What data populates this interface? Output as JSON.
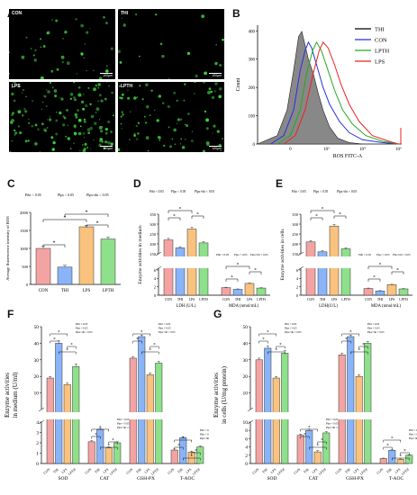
{
  "panel_letters": {
    "A": "A",
    "B": "B",
    "C": "C",
    "D": "D",
    "E": "E",
    "F": "F",
    "G": "G"
  },
  "micro": {
    "panels": [
      {
        "label": "CON",
        "scale": "100µm",
        "density": 0.25
      },
      {
        "label": "THI",
        "scale": "100µm",
        "density": 0.12
      },
      {
        "label": "LPS",
        "scale": "100µm",
        "density": 0.9
      },
      {
        "label": "LPTH",
        "scale": "100µm",
        "density": 0.55
      }
    ]
  },
  "colors": {
    "CON": "#f4a3a3",
    "THI": "#8ab4f8",
    "LPS": "#f9c27e",
    "LPTH": "#8ee08a"
  },
  "chart_data": [
    {
      "id": "B",
      "type": "line",
      "xlabel": "ROS FITC-A",
      "ylabel": "Count",
      "yticks": [
        0,
        100,
        200,
        300,
        400
      ],
      "ylim": [
        0,
        420
      ],
      "xtick_labels": [
        "0",
        "10³",
        "10⁴",
        "10⁵"
      ],
      "legend": [
        "THI",
        "CON",
        "LPTH",
        "LPS"
      ],
      "legend_colors": [
        "#000000",
        "#2233dd",
        "#22aa22",
        "#ee2222"
      ],
      "series": [
        {
          "name": "THI",
          "fill": true,
          "color": "#888888",
          "stroke": "#222222",
          "points": [
            [
              0,
              0
            ],
            [
              0.6,
              30
            ],
            [
              0.9,
              120
            ],
            [
              1.1,
              260
            ],
            [
              1.25,
              380
            ],
            [
              1.35,
              398
            ],
            [
              1.45,
              350
            ],
            [
              1.55,
              300
            ],
            [
              1.7,
              250
            ],
            [
              1.85,
              180
            ],
            [
              2.0,
              120
            ],
            [
              2.2,
              60
            ],
            [
              2.45,
              20
            ],
            [
              2.8,
              5
            ],
            [
              3.2,
              0
            ]
          ]
        },
        {
          "name": "CON",
          "fill": false,
          "color": "#2233dd",
          "points": [
            [
              0.4,
              0
            ],
            [
              0.8,
              30
            ],
            [
              1.1,
              120
            ],
            [
              1.3,
              260
            ],
            [
              1.45,
              330
            ],
            [
              1.55,
              360
            ],
            [
              1.65,
              340
            ],
            [
              1.8,
              280
            ],
            [
              2.0,
              200
            ],
            [
              2.2,
              140
            ],
            [
              2.5,
              80
            ],
            [
              2.8,
              40
            ],
            [
              3.2,
              15
            ],
            [
              3.8,
              5
            ],
            [
              4.3,
              0
            ]
          ]
        },
        {
          "name": "LPTH",
          "fill": false,
          "color": "#22aa22",
          "points": [
            [
              0.6,
              0
            ],
            [
              1.0,
              30
            ],
            [
              1.3,
              120
            ],
            [
              1.5,
              250
            ],
            [
              1.68,
              330
            ],
            [
              1.8,
              360
            ],
            [
              1.95,
              330
            ],
            [
              2.15,
              260
            ],
            [
              2.35,
              190
            ],
            [
              2.6,
              120
            ],
            [
              2.9,
              70
            ],
            [
              3.3,
              30
            ],
            [
              3.8,
              10
            ],
            [
              4.3,
              0
            ]
          ]
        },
        {
          "name": "LPS",
          "fill": false,
          "color": "#ee2222",
          "points": [
            [
              0.8,
              0
            ],
            [
              1.15,
              30
            ],
            [
              1.45,
              120
            ],
            [
              1.7,
              250
            ],
            [
              1.88,
              330
            ],
            [
              2.0,
              360
            ],
            [
              2.15,
              340
            ],
            [
              2.35,
              280
            ],
            [
              2.55,
              210
            ],
            [
              2.8,
              140
            ],
            [
              3.1,
              80
            ],
            [
              3.5,
              30
            ],
            [
              4.0,
              10
            ],
            [
              4.3,
              0
            ]
          ]
        }
      ]
    },
    {
      "id": "C",
      "type": "bar",
      "ylabel": "Average fluorescence intensity of ROS",
      "categories": [
        "CON",
        "THI",
        "LPS",
        "LPTH"
      ],
      "values": [
        1000,
        480,
        1600,
        1260
      ],
      "errors": [
        60,
        50,
        40,
        50
      ],
      "ylim": [
        0,
        2000
      ],
      "yticks": [
        0,
        500,
        1000,
        1500,
        2000
      ],
      "stats": [
        "Pthi < 0.05",
        "Plps < 0.05",
        "Plps×thi < 0.05"
      ]
    },
    {
      "id": "D",
      "type": "bar",
      "ylabel": "Enzyme activities in medium",
      "groups": [
        {
          "name": "LDH (U/L)",
          "values": [
            220,
            180,
            275,
            205
          ],
          "errors": [
            8,
            6,
            8,
            6
          ]
        },
        {
          "name": "MDA (nmol/mL)",
          "values": [
            1.8,
            1.4,
            2.8,
            1.7
          ],
          "errors": [
            0.1,
            0.1,
            0.1,
            0.1
          ]
        }
      ],
      "categories": [
        "CON",
        "THI",
        "LPS",
        "LPTH"
      ],
      "yticks_upper": [
        "150",
        "200",
        "250",
        "300",
        "350"
      ],
      "yticks_lower": [
        "0",
        "2",
        "4",
        "6"
      ],
      "stats": [
        "Pthi < 0.05",
        "Plps < 0.05",
        "Plps×thi < 0.05"
      ]
    },
    {
      "id": "E",
      "type": "bar",
      "ylabel": "Enzyme activities in cells",
      "groups": [
        {
          "name": "LDH(U/L)",
          "values": [
            210,
            160,
            290,
            175
          ],
          "errors": [
            6,
            5,
            8,
            6
          ]
        },
        {
          "name": "MDA (nmol/mL)",
          "values": [
            1.6,
            1.0,
            2.5,
            1.5
          ],
          "errors": [
            0.1,
            0.1,
            0.1,
            0.1
          ]
        }
      ],
      "categories": [
        "CON",
        "THI",
        "LPS",
        "LPTH"
      ],
      "yticks_upper": [
        "150",
        "200",
        "250",
        "300",
        "350"
      ],
      "yticks_lower": [
        "0",
        "2",
        "4",
        "6"
      ],
      "stats": [
        "Pthi < 0.05",
        "Plps < 0.05",
        "Plps×thi < 0.05"
      ]
    },
    {
      "id": "F",
      "type": "bar",
      "ylabel_lines": [
        "Enzyme activities",
        "in medium (U/ml)"
      ],
      "groups": [
        {
          "name": "SOD",
          "values": [
            19,
            40,
            15,
            26
          ],
          "errors": [
            1,
            1.5,
            1,
            1.5
          ]
        },
        {
          "name": "CAT",
          "values": [
            2.1,
            3.3,
            1.5,
            2.0
          ],
          "errors": [
            0.1,
            0.1,
            0.1,
            0.1
          ]
        },
        {
          "name": "GSH-PX",
          "values": [
            31,
            44,
            21,
            28
          ],
          "errors": [
            1,
            1,
            1,
            1
          ]
        },
        {
          "name": "T-AOC",
          "values": [
            1.3,
            2.5,
            1.1,
            1.6
          ],
          "errors": [
            0.1,
            0.1,
            0.1,
            0.1
          ]
        }
      ],
      "categories": [
        "CON",
        "THI",
        "LPS",
        "LPTH"
      ],
      "yticks_upper": [
        "10",
        "20",
        "30",
        "40",
        "50"
      ],
      "yticks_lower": [
        "0",
        "1",
        "2",
        "3",
        "4"
      ],
      "stats": [
        "Pthi < 0.05",
        "Plps < 0.05",
        "Plps×thi < 0.05"
      ]
    },
    {
      "id": "G",
      "type": "bar",
      "ylabel_lines": [
        "Enzyme activities",
        "in cells (U/mg protein)"
      ],
      "groups": [
        {
          "name": "SOD",
          "values": [
            30,
            37,
            19,
            34
          ],
          "errors": [
            1,
            1.5,
            1,
            1.5
          ]
        },
        {
          "name": "CAT",
          "values": [
            6.8,
            8.0,
            2.8,
            7.4
          ],
          "errors": [
            0.3,
            0.3,
            0.3,
            0.3
          ]
        },
        {
          "name": "GSH-PX",
          "values": [
            33,
            44,
            20,
            40
          ],
          "errors": [
            1,
            1,
            1,
            1
          ]
        },
        {
          "name": "T-AOC",
          "values": [
            1.2,
            3.2,
            1.0,
            2.0
          ],
          "errors": [
            0.1,
            0.1,
            0.1,
            0.1
          ]
        }
      ],
      "categories": [
        "CON",
        "THI",
        "LPS",
        "LPTH"
      ],
      "yticks_upper": [
        "10",
        "20",
        "30",
        "40",
        "50"
      ],
      "yticks_lower": [
        "0",
        "2",
        "4",
        "6",
        "8",
        "10"
      ],
      "stats": [
        "Pthi < 0.05",
        "Plps < 0.05",
        "Plps×thi < 0.05"
      ]
    }
  ]
}
